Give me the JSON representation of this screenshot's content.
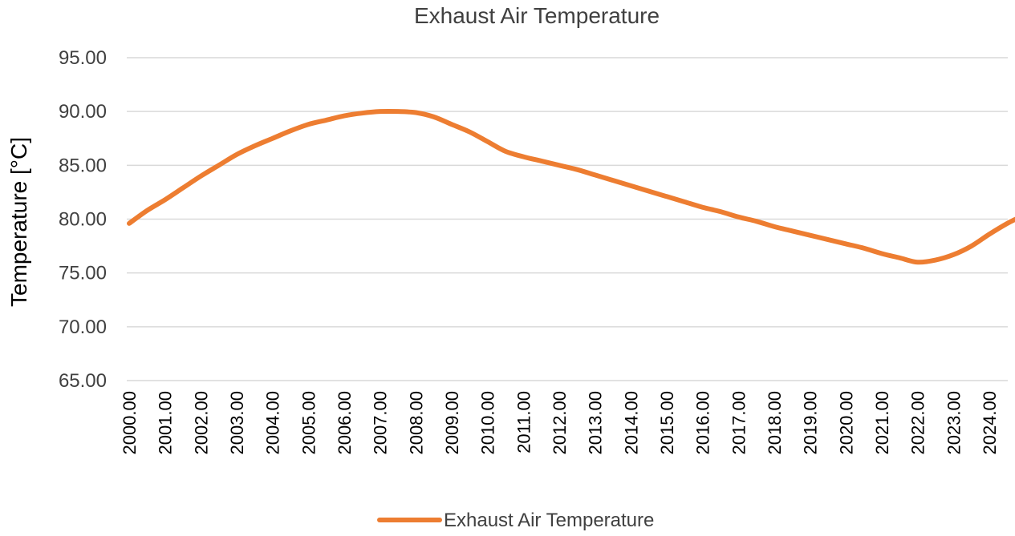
{
  "chart_data": {
    "type": "line",
    "title": "Exhaust Air Temperature",
    "xlabel": "",
    "ylabel": "Temperature   [°C]",
    "ylim": [
      65,
      95
    ],
    "yticks": [
      "65.00",
      "70.00",
      "75.00",
      "80.00",
      "85.00",
      "90.00",
      "95.00"
    ],
    "categories": [
      "2000.00",
      "2001.00",
      "2002.00",
      "2003.00",
      "2004.00",
      "2005.00",
      "2006.00",
      "2007.00",
      "2008.00",
      "2009.00",
      "2010.00",
      "2011.00",
      "2012.00",
      "2013.00",
      "2014.00",
      "2015.00",
      "2016.00",
      "2017.00",
      "2018.00",
      "2019.00",
      "2020.00",
      "2021.00",
      "2022.00",
      "2023.00",
      "2024.00"
    ],
    "grid": true,
    "legend_position": "bottom",
    "series": [
      {
        "name": "Exhaust Air Temperature",
        "color": "#ED7D31",
        "x": [
          2000,
          2000.5,
          2001,
          2001.5,
          2002,
          2002.5,
          2003,
          2003.5,
          2004,
          2004.5,
          2005,
          2005.5,
          2006,
          2006.5,
          2007,
          2007.5,
          2008,
          2008.5,
          2009,
          2009.5,
          2010,
          2010.5,
          2011,
          2011.5,
          2012,
          2012.5,
          2013,
          2013.5,
          2014,
          2014.5,
          2015,
          2015.5,
          2016,
          2016.5,
          2017,
          2017.5,
          2018,
          2018.5,
          2019,
          2019.5,
          2020,
          2020.5,
          2021,
          2021.5,
          2022,
          2022.5,
          2023,
          2023.5,
          2024,
          2024.5,
          2024.8
        ],
        "values": [
          79.6,
          80.8,
          81.8,
          82.9,
          84.0,
          85.0,
          86.0,
          86.8,
          87.5,
          88.2,
          88.8,
          89.2,
          89.6,
          89.85,
          90.0,
          90.0,
          89.9,
          89.5,
          88.8,
          88.1,
          87.2,
          86.3,
          85.8,
          85.4,
          85.0,
          84.6,
          84.1,
          83.6,
          83.1,
          82.6,
          82.1,
          81.6,
          81.1,
          80.7,
          80.2,
          79.8,
          79.3,
          78.9,
          78.5,
          78.1,
          77.7,
          77.3,
          76.8,
          76.4,
          76.0,
          76.2,
          76.7,
          77.5,
          78.6,
          79.6,
          80.1
        ]
      }
    ]
  }
}
